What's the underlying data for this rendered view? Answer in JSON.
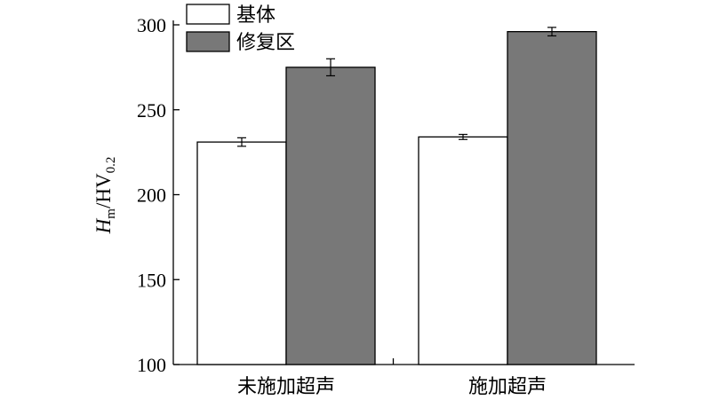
{
  "chart_data": {
    "type": "bar",
    "categories": [
      "未施加超声",
      "施加超声"
    ],
    "series": [
      {
        "name": "基体",
        "values": [
          231,
          234
        ],
        "errors": [
          2.5,
          1.5
        ],
        "color": "#ffffff"
      },
      {
        "name": "修复区",
        "values": [
          275,
          296
        ],
        "errors": [
          5,
          2.5
        ],
        "color": "#787878"
      }
    ],
    "ylabel": {
      "main": "H",
      "sub": "m",
      "unit": "/HV",
      "unit_sub": "0.2"
    },
    "xlabel": "",
    "ylim": [
      100,
      300
    ],
    "yticks": [
      100,
      150,
      200,
      250,
      300
    ],
    "legend": "top-left",
    "grid": false
  }
}
